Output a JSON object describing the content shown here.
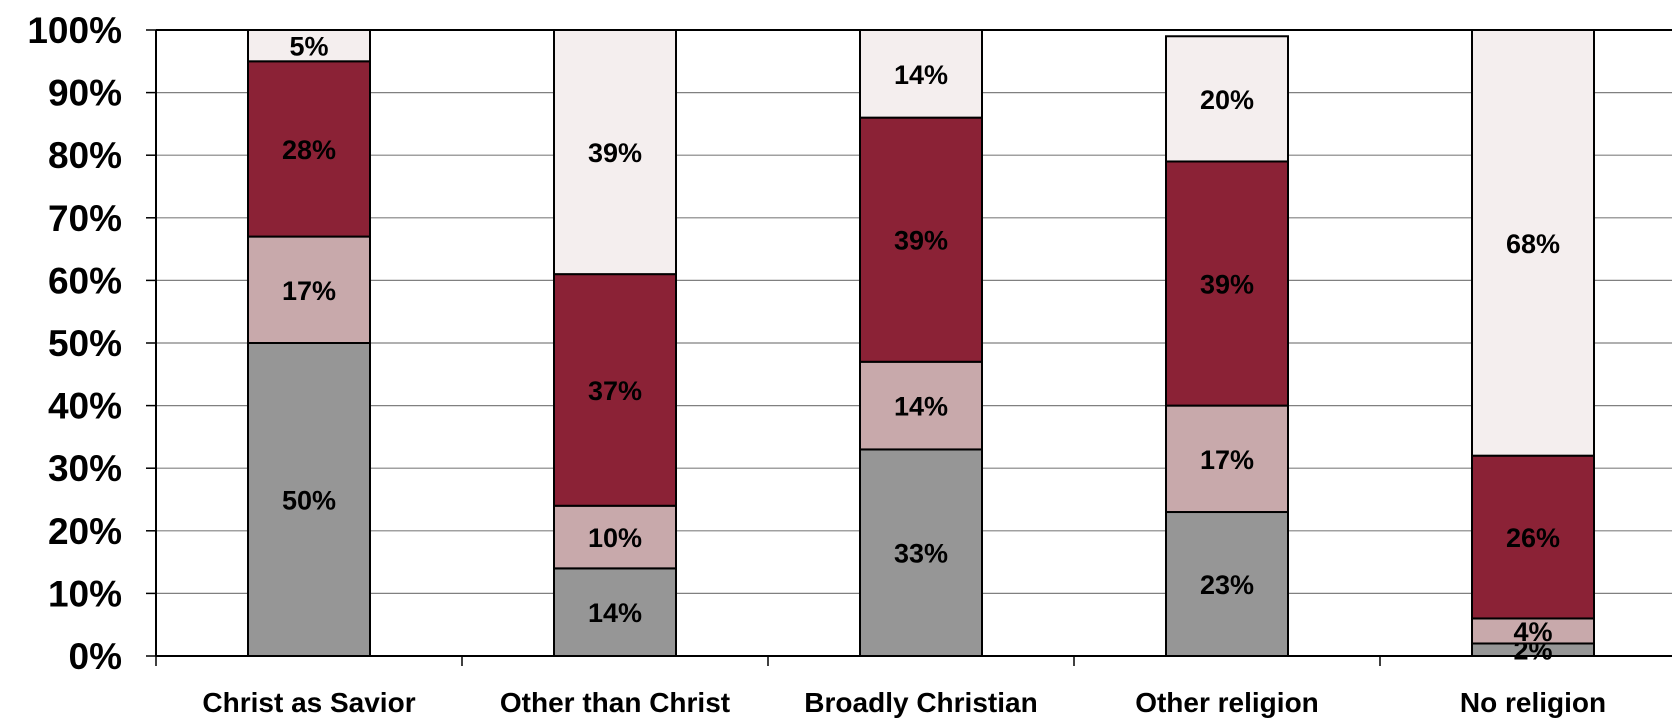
{
  "chart_data": {
    "type": "bar",
    "stacked": true,
    "categories": [
      "Christ as Savior",
      "Other than Christ",
      "Broadly Christian",
      "Other religion",
      "No religion"
    ],
    "series": [
      {
        "values": [
          50,
          14,
          33,
          23,
          2
        ],
        "labels": [
          "50%",
          "14%",
          "33%",
          "23%",
          "2%"
        ],
        "color": "#969696"
      },
      {
        "values": [
          17,
          10,
          14,
          17,
          4
        ],
        "labels": [
          "17%",
          "10%",
          "14%",
          "17%",
          "4%"
        ],
        "color": "#c8a9ab"
      },
      {
        "values": [
          28,
          37,
          39,
          39,
          26
        ],
        "labels": [
          "28%",
          "37%",
          "39%",
          "39%",
          "26%"
        ],
        "color": "#8b2236"
      },
      {
        "values": [
          5,
          39,
          14,
          20,
          68
        ],
        "labels": [
          "5%",
          "39%",
          "14%",
          "20%",
          "68%"
        ],
        "color": "#f4eeee"
      }
    ],
    "yticks": [
      "0%",
      "10%",
      "20%",
      "30%",
      "40%",
      "50%",
      "60%",
      "70%",
      "80%",
      "90%",
      "100%"
    ],
    "ylim": [
      0,
      100
    ],
    "grid": true,
    "title": "",
    "xlabel": "",
    "ylabel": ""
  }
}
